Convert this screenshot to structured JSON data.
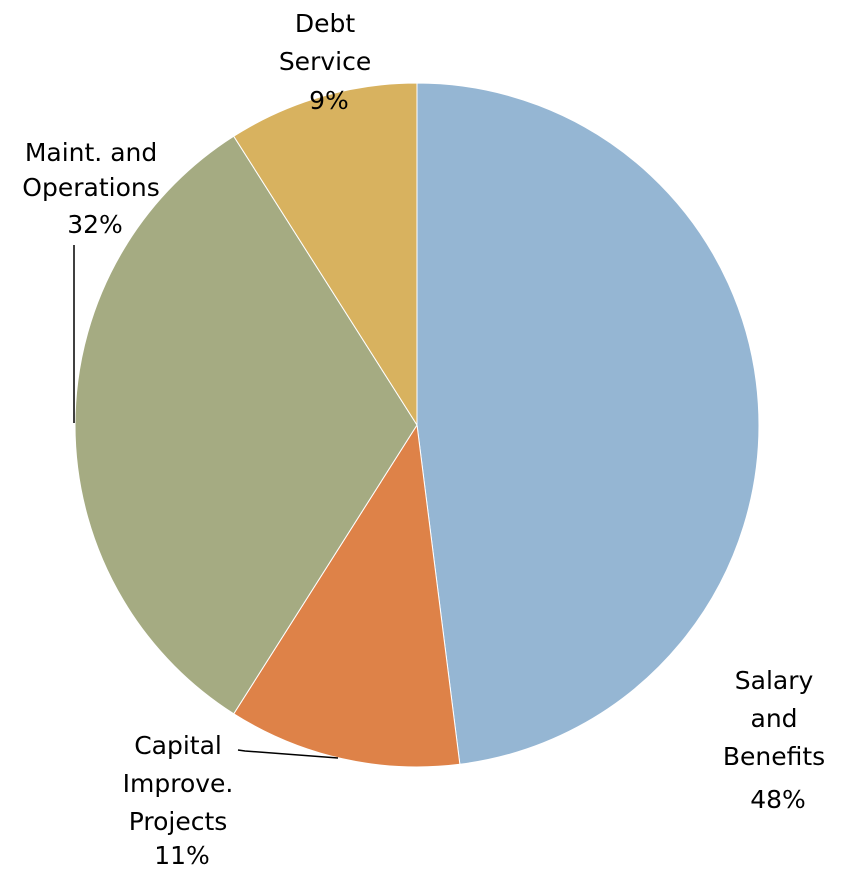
{
  "chart_data": {
    "type": "pie",
    "slices": [
      {
        "label": "Salary and Benefits",
        "value": 48,
        "value_label": "48%",
        "color": "#95b6d3"
      },
      {
        "label": "Capital Improve. Projects",
        "value": 11,
        "value_label": "11%",
        "color": "#de8248"
      },
      {
        "label": "Maint. and Operations",
        "value": 32,
        "value_label": "32%",
        "color": "#a5ab82"
      },
      {
        "label": "Debt Service",
        "value": 9,
        "value_label": "9%",
        "color": "#d8b25f"
      }
    ],
    "start_angle": "12 o'clock",
    "direction": "clockwise",
    "legend": "none (data labels)"
  }
}
